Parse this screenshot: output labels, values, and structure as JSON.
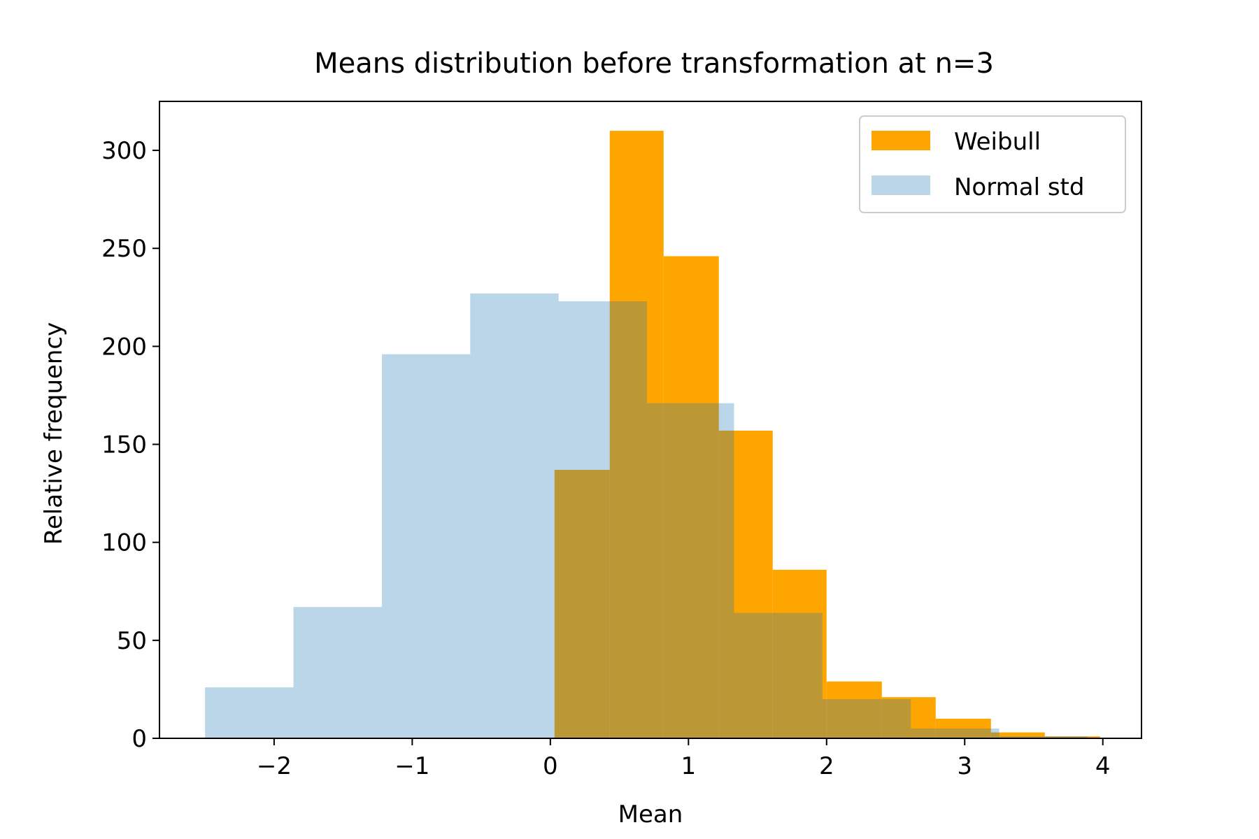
{
  "chart_data": {
    "type": "bar",
    "title": "Means distribution before transformation at n=3",
    "xlabel": "Mean",
    "ylabel": "Relative frequency",
    "xlim": [
      -2.83,
      4.28
    ],
    "ylim": [
      0,
      325
    ],
    "xticks": [
      -2,
      -1,
      0,
      1,
      2,
      3,
      4
    ],
    "xtick_labels": [
      "−2",
      "−1",
      "0",
      "1",
      "2",
      "3",
      "4"
    ],
    "yticks": [
      0,
      50,
      100,
      150,
      200,
      250,
      300
    ],
    "ytick_labels": [
      "0",
      "50",
      "100",
      "150",
      "200",
      "250",
      "300"
    ],
    "grid": false,
    "legend_position": "upper right",
    "series": [
      {
        "name": "Weibull",
        "color": "#ffa500",
        "opacity": 1.0,
        "bin_edges": [
          0.03,
          0.43,
          0.82,
          1.22,
          1.61,
          2.0,
          2.4,
          2.79,
          3.19,
          3.58,
          3.98
        ],
        "values": [
          137,
          310,
          246,
          157,
          86,
          29,
          21,
          10,
          3,
          1
        ]
      },
      {
        "name": "Normal std",
        "color": "#1f77b4",
        "opacity": 0.3,
        "bin_edges": [
          -2.5,
          -1.86,
          -1.22,
          -0.58,
          0.06,
          0.7,
          1.33,
          1.97,
          2.61,
          3.25,
          3.89
        ],
        "values": [
          26,
          67,
          196,
          227,
          223,
          171,
          64,
          20,
          5,
          1
        ]
      }
    ],
    "draw_order": [
      "Weibull",
      "Normal std"
    ]
  }
}
